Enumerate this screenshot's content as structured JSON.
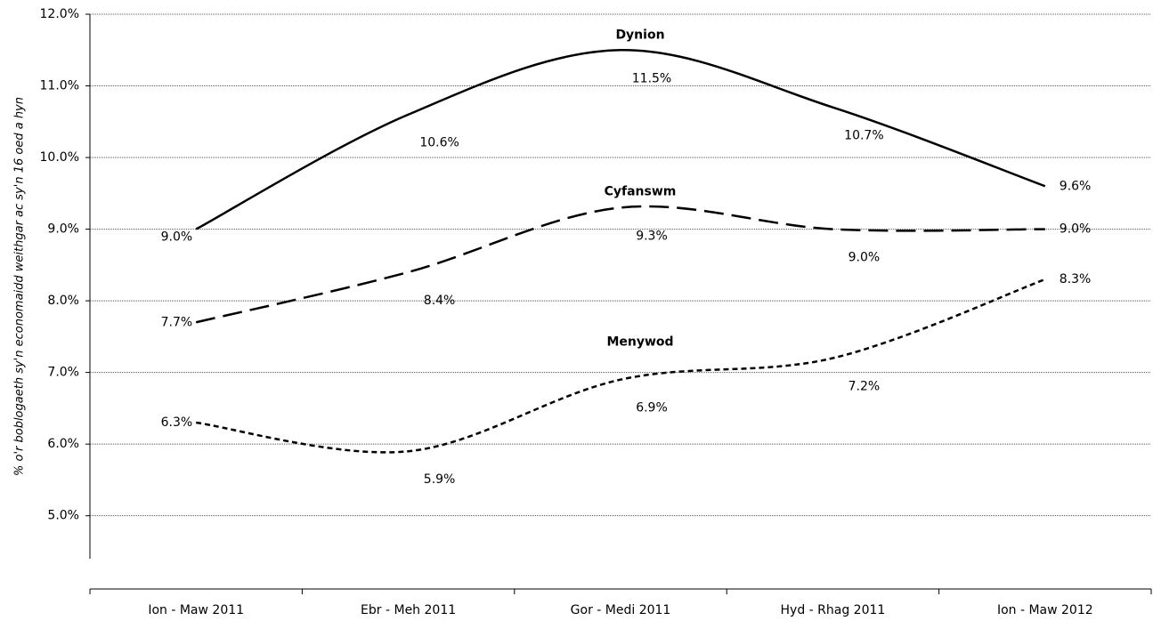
{
  "chart_data": {
    "type": "line",
    "y_label": "% o'r boblogaeth sy'n economaidd weithgar ac sy'n 16 oed a hyn",
    "categories": [
      "Ion - Maw 2011",
      "Ebr - Meh 2011",
      "Gor - Medi 2011",
      "Hyd - Rhag 2011",
      "Ion - Maw 2012"
    ],
    "series": [
      {
        "name": "Dynion",
        "color": "#000000",
        "dash": "solid",
        "values": [
          9.0,
          10.6,
          11.5,
          10.7,
          9.6
        ],
        "value_labels": [
          "9.0%",
          "10.6%",
          "11.5%",
          "10.7%",
          "9.6%"
        ]
      },
      {
        "name": "Cyfanswm",
        "color": "#000000",
        "dash": "long",
        "values": [
          7.7,
          8.4,
          9.3,
          9.0,
          9.0
        ],
        "value_labels": [
          "7.7%",
          "8.4%",
          "9.3%",
          "9.0%",
          "9.0%"
        ]
      },
      {
        "name": "Menywod",
        "color": "#000000",
        "dash": "short",
        "values": [
          6.3,
          5.9,
          6.9,
          7.2,
          8.3
        ],
        "value_labels": [
          "6.3%",
          "5.9%",
          "6.9%",
          "7.2%",
          "8.3%"
        ]
      }
    ],
    "ylim": [
      4.4,
      12
    ],
    "yticks": [
      {
        "value": 5,
        "label": "5.0%"
      },
      {
        "value": 6,
        "label": "6.0%"
      },
      {
        "value": 7,
        "label": "7.0%"
      },
      {
        "value": 8,
        "label": "8.0%"
      },
      {
        "value": 9,
        "label": "9.0%"
      },
      {
        "value": 10,
        "label": "10.0%"
      },
      {
        "value": 11,
        "label": "11.0%"
      },
      {
        "value": 12,
        "label": "12.0%"
      }
    ],
    "grid": true
  }
}
